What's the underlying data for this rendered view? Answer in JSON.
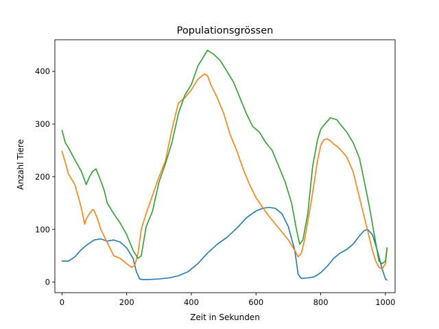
{
  "chart_data": {
    "type": "line",
    "title": "Populationsgrössen",
    "xlabel": "Zeit in Sekunden",
    "ylabel": "Anzahl Tiere",
    "xlim": [
      -22,
      1030
    ],
    "ylim": [
      -20,
      460
    ],
    "xticks": [
      0,
      200,
      400,
      600,
      800,
      1000
    ],
    "yticks": [
      0,
      100,
      200,
      300,
      400
    ],
    "grid": false,
    "legend": "none",
    "series": [
      {
        "color": "#1f77b4",
        "x": [
          0,
          20,
          40,
          60,
          80,
          100,
          120,
          140,
          160,
          180,
          200,
          220,
          230,
          240,
          250,
          270,
          300,
          330,
          360,
          390,
          420,
          450,
          480,
          510,
          540,
          570,
          600,
          620,
          640,
          660,
          680,
          700,
          720,
          730,
          740,
          760,
          780,
          800,
          820,
          840,
          860,
          880,
          900,
          920,
          935,
          945,
          960,
          975,
          990,
          1000,
          1005
        ],
        "y": [
          40,
          40,
          48,
          62,
          72,
          80,
          82,
          78,
          80,
          76,
          65,
          45,
          20,
          6,
          5,
          5,
          6,
          8,
          12,
          20,
          35,
          55,
          72,
          85,
          102,
          122,
          135,
          140,
          142,
          140,
          130,
          105,
          60,
          15,
          7,
          8,
          10,
          18,
          30,
          45,
          55,
          62,
          72,
          88,
          98,
          100,
          90,
          60,
          25,
          6,
          4
        ]
      },
      {
        "color": "#ff7f0e",
        "x": [
          0,
          10,
          20,
          40,
          60,
          70,
          75,
          85,
          95,
          100,
          110,
          120,
          140,
          160,
          180,
          200,
          215,
          225,
          235,
          245,
          260,
          280,
          300,
          320,
          340,
          360,
          380,
          400,
          420,
          440,
          450,
          460,
          480,
          500,
          520,
          540,
          560,
          580,
          600,
          620,
          640,
          660,
          680,
          700,
          720,
          730,
          740,
          750,
          760,
          770,
          780,
          790,
          800,
          810,
          820,
          830,
          840,
          850,
          860,
          880,
          900,
          920,
          940,
          950,
          960,
          970,
          980,
          990,
          1000,
          1005
        ],
        "y": [
          248,
          228,
          205,
          185,
          140,
          110,
          120,
          130,
          138,
          135,
          120,
          100,
          75,
          50,
          45,
          35,
          28,
          32,
          55,
          100,
          130,
          165,
          200,
          230,
          290,
          340,
          350,
          365,
          385,
          395,
          392,
          375,
          350,
          320,
          280,
          250,
          215,
          185,
          160,
          142,
          125,
          110,
          95,
          80,
          60,
          48,
          55,
          80,
          115,
          150,
          190,
          230,
          260,
          270,
          272,
          268,
          262,
          258,
          252,
          238,
          210,
          160,
          110,
          85,
          60,
          40,
          28,
          25,
          35,
          62
        ]
      },
      {
        "color": "#2ca02c",
        "x": [
          0,
          10,
          20,
          40,
          60,
          75,
          85,
          95,
          105,
          115,
          130,
          140,
          160,
          180,
          200,
          220,
          235,
          245,
          260,
          280,
          300,
          320,
          340,
          360,
          380,
          400,
          420,
          440,
          450,
          470,
          490,
          510,
          530,
          550,
          570,
          590,
          610,
          630,
          650,
          670,
          690,
          710,
          725,
          735,
          745,
          760,
          775,
          790,
          800,
          810,
          820,
          830,
          840,
          850,
          860,
          880,
          900,
          920,
          940,
          950,
          960,
          970,
          980,
          990,
          1000,
          1005
        ],
        "y": [
          288,
          265,
          255,
          232,
          210,
          185,
          200,
          210,
          215,
          200,
          175,
          150,
          130,
          112,
          90,
          60,
          45,
          50,
          105,
          135,
          190,
          225,
          265,
          320,
          355,
          375,
          410,
          430,
          440,
          432,
          420,
          400,
          380,
          350,
          320,
          295,
          285,
          265,
          250,
          220,
          190,
          150,
          100,
          72,
          80,
          130,
          220,
          270,
          290,
          298,
          305,
          312,
          310,
          308,
          300,
          285,
          265,
          235,
          175,
          145,
          110,
          75,
          40,
          35,
          40,
          65
        ]
      }
    ]
  }
}
